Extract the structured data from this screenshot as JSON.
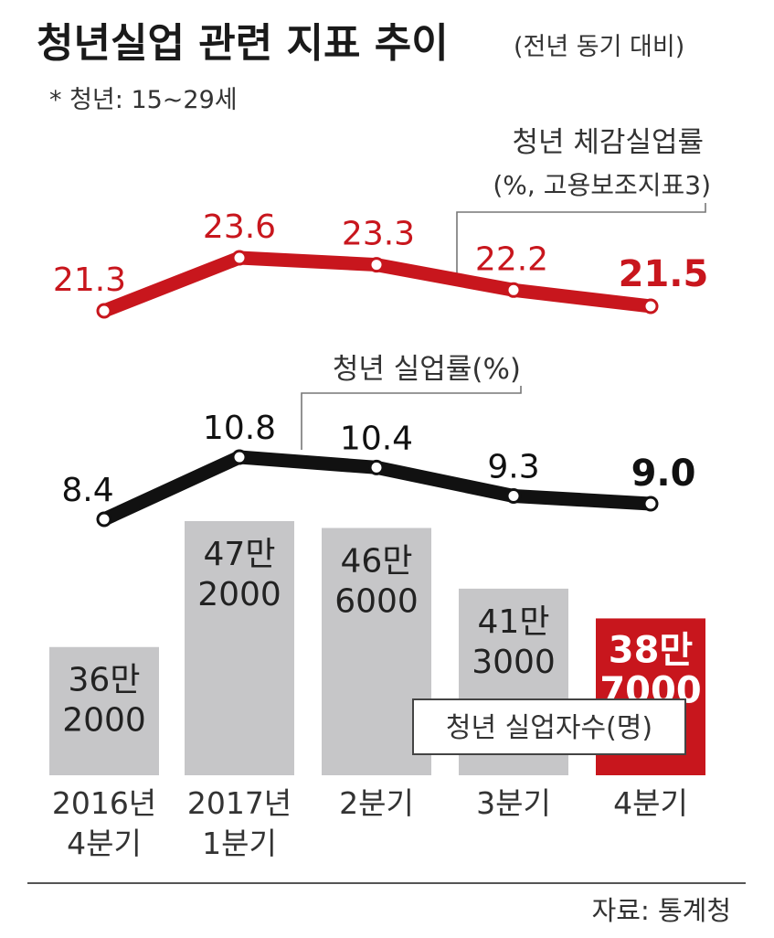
{
  "header": {
    "title": "청년실업 관련 지표 추이",
    "subtitle": "(전년 동기 대비)",
    "note": "* 청년: 15~29세"
  },
  "footer": {
    "source": "자료: 통계청"
  },
  "colors": {
    "accent_red": "#c8161d",
    "black_line": "#111111",
    "bar_gray": "#c6c6c8",
    "highlight_bar": "#c8161d"
  },
  "chart_data": {
    "type": "bar",
    "categories": [
      [
        "2016년",
        "4분기"
      ],
      [
        "2017년",
        "1분기"
      ],
      [
        "2분기"
      ],
      [
        "3분기"
      ],
      [
        "4분기"
      ]
    ],
    "series": [
      {
        "name": "청년 체감실업률",
        "name_detail": "(%, 고용보조지표3)",
        "type": "line",
        "color": "#c8161d",
        "values": [
          21.3,
          23.6,
          23.3,
          22.2,
          21.5
        ],
        "labels": [
          "21.3",
          "23.6",
          "23.3",
          "22.2",
          "21.5"
        ]
      },
      {
        "name": "청년 실업률(%)",
        "type": "line",
        "color": "#111111",
        "values": [
          8.4,
          10.8,
          10.4,
          9.3,
          9.0
        ],
        "labels": [
          "8.4",
          "10.8",
          "10.4",
          "9.3",
          "9.0"
        ]
      },
      {
        "name": "청년 실업자수(명)",
        "type": "bar",
        "values": [
          362000,
          472000,
          466000,
          413000,
          387000
        ],
        "labels": [
          [
            "36만",
            "2000"
          ],
          [
            "47만",
            "2000"
          ],
          [
            "46만",
            "6000"
          ],
          [
            "41만",
            "3000"
          ],
          [
            "38만",
            "7000"
          ]
        ],
        "highlight_index": 4
      }
    ]
  }
}
